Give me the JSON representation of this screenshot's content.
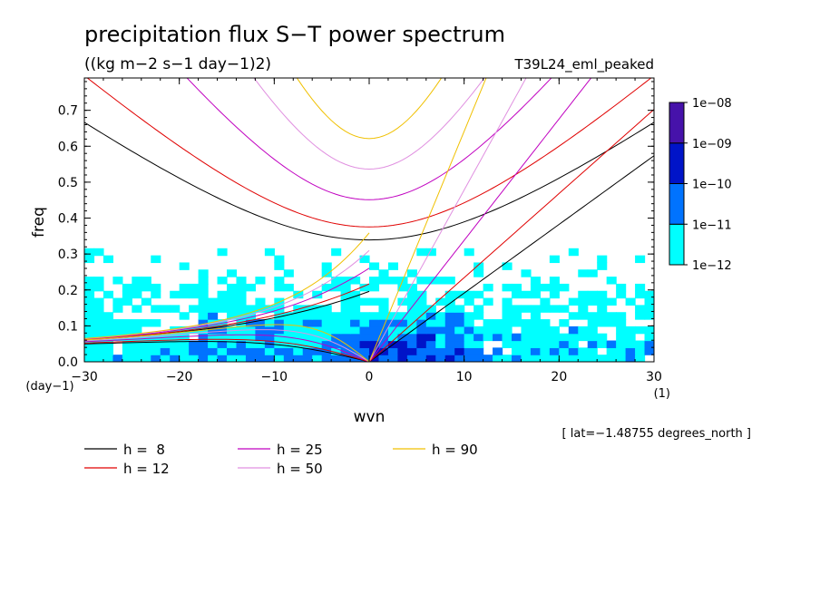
{
  "chart_data": {
    "type": "heatmap",
    "title": "precipitation flux S−T power spectrum",
    "subtitle": "((kg m−2 s−1 day−1)2)",
    "dataset_label": "T39L24_eml_peaked",
    "xlabel": "wvn",
    "ylabel": "freq",
    "x_unit_label": "(1)",
    "y_unit_label": "(day−1)",
    "xlim": [
      -30,
      30
    ],
    "ylim": [
      0,
      0.79
    ],
    "x_ticks": [
      -30,
      -20,
      -10,
      0,
      10,
      20,
      30
    ],
    "x_tick_labels": [
      "−30",
      "−20",
      "−10",
      "0",
      "10",
      "20",
      "30"
    ],
    "y_ticks": [
      0.0,
      0.1,
      0.2,
      0.3,
      0.4,
      0.5,
      0.6,
      0.7
    ],
    "y_tick_labels": [
      "0.0",
      "0.1",
      "0.2",
      "0.3",
      "0.4",
      "0.5",
      "0.6",
      "0.7"
    ],
    "location_note": "[ lat=−1.48755 degrees_north ]",
    "colorbar": {
      "labels": [
        "1e−08",
        "1e−09",
        "1e−10",
        "1e−11",
        "1e−12"
      ],
      "levels": [
        1e-12,
        1e-11,
        1e-10,
        1e-09,
        1e-08
      ],
      "colors": [
        "#00ffff",
        "#0073ff",
        "#0014c8",
        "#4612aa"
      ]
    },
    "series": [
      {
        "label": "h =  8",
        "h": 8,
        "color": "#000000"
      },
      {
        "label": "h = 12",
        "h": 12,
        "color": "#e00000"
      },
      {
        "label": "h = 25",
        "h": 25,
        "color": "#c000c0"
      },
      {
        "label": "h = 50",
        "h": 50,
        "color": "#e090e0"
      },
      {
        "label": "h = 90",
        "h": 90,
        "color": "#f0c000"
      }
    ]
  }
}
